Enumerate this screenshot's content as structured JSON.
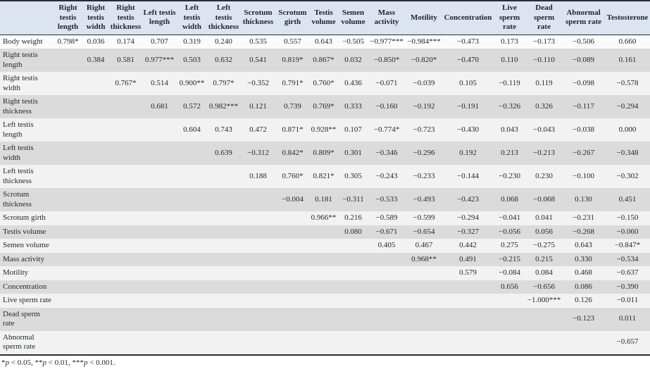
{
  "table": {
    "columns": [
      "Right testis length",
      "Right testis width",
      "Right testis thickness",
      "Left testis length",
      "Left testis width",
      "Left testis thickness",
      "Scrotum thickness",
      "Scrotum girth",
      "Testis volume",
      "Semen volume",
      "Mass activity",
      "Motility",
      "Concentration",
      "Live sperm rate",
      "Dead sperm rate",
      "Abnormal sperm rate",
      "Testosterone"
    ],
    "rows": [
      {
        "label": "Body weight",
        "values": [
          "0.798*",
          "0.036",
          "0.174",
          "0.707",
          "0.319",
          "0.240",
          "0.535",
          "0.557",
          "0.643",
          "−0.505",
          "−0.977***",
          "−0.984***",
          "−0.473",
          "0.173",
          "−0.173",
          "−0.506",
          "0.660"
        ]
      },
      {
        "label": "Right testis length",
        "values": [
          "",
          "0.384",
          "0.581",
          "0.977***",
          "0.503",
          "0.632",
          "0.541",
          "0.819*",
          "0.867*",
          "0.032",
          "−0.850*",
          "−0.820*",
          "−0.470",
          "0.110",
          "−0.110",
          "−0.089",
          "0.161"
        ]
      },
      {
        "label": "Right testis width",
        "values": [
          "",
          "",
          "0.767*",
          "0.514",
          "0.900**",
          "0.797*",
          "−0.352",
          "0.791*",
          "0.760*",
          "0.436",
          "−0.071",
          "−0.039",
          "0.105",
          "−0.119",
          "0.119",
          "−0.098",
          "−0.578"
        ]
      },
      {
        "label": "Right testis thickness",
        "values": [
          "",
          "",
          "",
          "0.681",
          "0.572",
          "0.982***",
          "0.121",
          "0.739",
          "0.769*",
          "0.333",
          "−0.160",
          "−0.192",
          "−0.191",
          "−0.326",
          "0.326",
          "−0.117",
          "−0.294"
        ]
      },
      {
        "label": "Left testis length",
        "values": [
          "",
          "",
          "",
          "",
          "0.604",
          "0.743",
          "0.472",
          "0.871*",
          "0.928**",
          "0.107",
          "−0.774*",
          "−0.723",
          "−0.430",
          "0.043",
          "−0.043",
          "−0.038",
          "0.000"
        ]
      },
      {
        "label": "Left testis width",
        "values": [
          "",
          "",
          "",
          "",
          "",
          "0.639",
          "−0.312",
          "0.842*",
          "0.809*",
          "0.301",
          "−0.346",
          "−0.296",
          "0.192",
          "0.213",
          "−0.213",
          "−0.267",
          "−0.348"
        ]
      },
      {
        "label": "Left testis thickness",
        "values": [
          "",
          "",
          "",
          "",
          "",
          "",
          "0.188",
          "0.760*",
          "0.821*",
          "0.305",
          "−0.243",
          "−0.233",
          "−0.144",
          "−0.230",
          "0.230",
          "−0.100",
          "−0.302"
        ]
      },
      {
        "label": "Scrotum thickness",
        "values": [
          "",
          "",
          "",
          "",
          "",
          "",
          "",
          "−0.004",
          "0.181",
          "−0.311",
          "−0.533",
          "−0.493",
          "−0.423",
          "0.068",
          "−0.068",
          "0.130",
          "0.451"
        ]
      },
      {
        "label": "Scrotum girth",
        "values": [
          "",
          "",
          "",
          "",
          "",
          "",
          "",
          "",
          "0.966**",
          "0.216",
          "−0.589",
          "−0.599",
          "−0.294",
          "−0.041",
          "0.041",
          "−0.231",
          "−0.150"
        ]
      },
      {
        "label": "Testis volume",
        "values": [
          "",
          "",
          "",
          "",
          "",
          "",
          "",
          "",
          "",
          "0.080",
          "−0.671",
          "−0.654",
          "−0.327",
          "−0.056",
          "0.056",
          "−0.268",
          "−0.060"
        ]
      },
      {
        "label": "Semen volume",
        "values": [
          "",
          "",
          "",
          "",
          "",
          "",
          "",
          "",
          "",
          "",
          "0.405",
          "0.467",
          "0.442",
          "0.275",
          "−0.275",
          "0.643",
          "−0.847*"
        ]
      },
      {
        "label": "Mass activity",
        "values": [
          "",
          "",
          "",
          "",
          "",
          "",
          "",
          "",
          "",
          "",
          "",
          "0.968**",
          "0.491",
          "−0.215",
          "0.215",
          "0.330",
          "−0.534"
        ]
      },
      {
        "label": "Motility",
        "values": [
          "",
          "",
          "",
          "",
          "",
          "",
          "",
          "",
          "",
          "",
          "",
          "",
          "0.579",
          "−0.084",
          "0.084",
          "0.468",
          "−0.637"
        ]
      },
      {
        "label": "Concentration",
        "values": [
          "",
          "",
          "",
          "",
          "",
          "",
          "",
          "",
          "",
          "",
          "",
          "",
          "",
          "0.656",
          "−0.656",
          "0.086",
          "−0.390"
        ]
      },
      {
        "label": "Live sperm rate",
        "values": [
          "",
          "",
          "",
          "",
          "",
          "",
          "",
          "",
          "",
          "",
          "",
          "",
          "",
          "",
          "−1.000***",
          "0.126",
          "−0.011"
        ]
      },
      {
        "label": "Dead sperm rate",
        "values": [
          "",
          "",
          "",
          "",
          "",
          "",
          "",
          "",
          "",
          "",
          "",
          "",
          "",
          "",
          "",
          "−0.123",
          "0.011"
        ]
      },
      {
        "label": "Abnormal sperm rate",
        "values": [
          "",
          "",
          "",
          "",
          "",
          "",
          "",
          "",
          "",
          "",
          "",
          "",
          "",
          "",
          "",
          "",
          "−0.657"
        ]
      }
    ],
    "footnote_segments": [
      {
        "text": "*",
        "italic": false
      },
      {
        "text": "p",
        "italic": true
      },
      {
        "text": " < 0.05, **",
        "italic": false
      },
      {
        "text": "p",
        "italic": true
      },
      {
        "text": " < 0.01, ***",
        "italic": false
      },
      {
        "text": "p",
        "italic": true
      },
      {
        "text": " < 0.001.",
        "italic": false
      }
    ]
  },
  "colors": {
    "header_bg": "#dce4ef",
    "row_light": "#f2f2f2",
    "row_gray": "#dbdbdb",
    "border": "#2a2d33"
  }
}
